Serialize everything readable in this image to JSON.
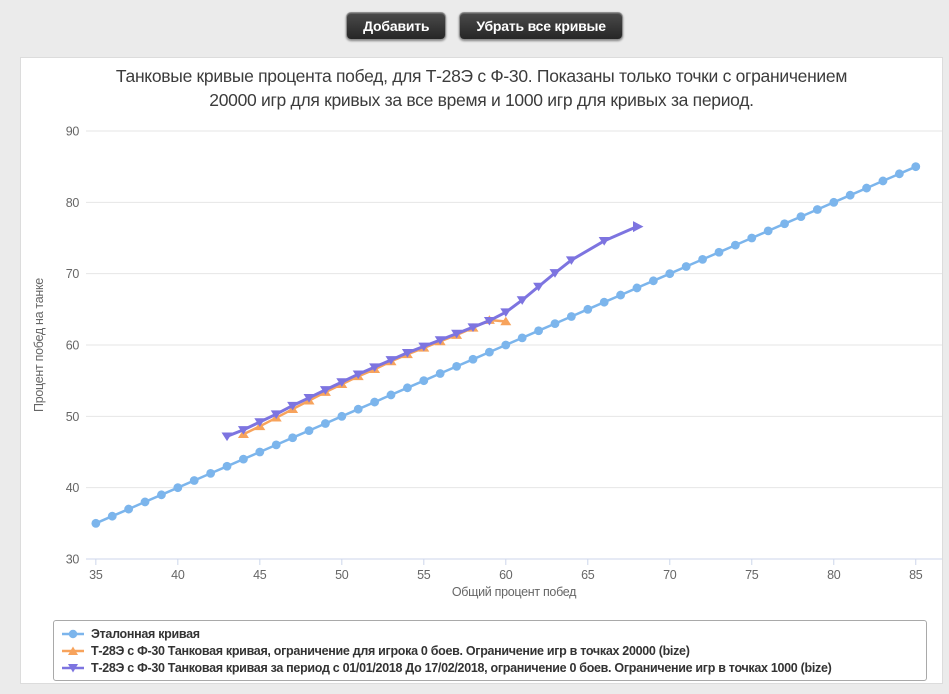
{
  "toolbar": {
    "add_label": "Добавить",
    "clear_label": "Убрать все кривые"
  },
  "colors": {
    "page_bg": "#ebebeb",
    "card_bg": "#ffffff",
    "grid_line": "#e6e6e6",
    "axis_line": "#ccd6eb",
    "tick_text": "#666666",
    "title_text": "#3c3c3c",
    "legend_text": "#333333"
  },
  "chart_data": {
    "type": "line",
    "title": "Танковые кривые процента побед, для Т-28Э с Ф-30. Показаны только точки с ограничением 20000 игр для кривых за все время и 1000 игр для кривых за период.",
    "title_lines": [
      "Танковые кривые процента побед, для Т-28Э с Ф-30. Показаны только точки с ограничением",
      "20000 игр для кривых за все время и 1000 игр для кривых за период."
    ],
    "xlabel": "Общий процент побед",
    "ylabel": "Процент побед на танке",
    "xlim": [
      34.4,
      86.6
    ],
    "ylim": [
      30,
      90
    ],
    "xticks": [
      35,
      40,
      45,
      50,
      55,
      60,
      65,
      70,
      75,
      80,
      85
    ],
    "yticks": [
      30,
      40,
      50,
      60,
      70,
      80,
      90
    ],
    "grid": "horizontal",
    "legend_position": "bottom",
    "series": [
      {
        "name": "Эталонная кривая",
        "color": "#7cb5ec",
        "marker": "circle",
        "x": [
          35,
          36,
          37,
          38,
          39,
          40,
          41,
          42,
          43,
          44,
          45,
          46,
          47,
          48,
          49,
          50,
          51,
          52,
          53,
          54,
          55,
          56,
          57,
          58,
          59,
          60,
          61,
          62,
          63,
          64,
          65,
          66,
          67,
          68,
          69,
          70,
          71,
          72,
          73,
          74,
          75,
          76,
          77,
          78,
          79,
          80,
          81,
          82,
          83,
          84,
          85
        ],
        "y": [
          35,
          36,
          37,
          38,
          39,
          40,
          41,
          42,
          43,
          44,
          45,
          46,
          47,
          48,
          49,
          50,
          51,
          52,
          53,
          54,
          55,
          56,
          57,
          58,
          59,
          60,
          61,
          62,
          63,
          64,
          65,
          66,
          67,
          68,
          69,
          70,
          71,
          72,
          73,
          74,
          75,
          76,
          77,
          78,
          79,
          80,
          81,
          82,
          83,
          84,
          85
        ]
      },
      {
        "name": "Т-28Э с Ф-30 Танковая кривая, ограничение для игрока 0 боев. Ограничение игр в точках 20000 (bize)",
        "color": "#f7a35c",
        "marker": "triangle-up",
        "x": [
          44,
          45,
          46,
          47,
          48,
          49,
          50,
          51,
          52,
          53,
          54,
          55,
          56,
          57,
          58,
          59,
          60
        ],
        "y": [
          47.5,
          48.6,
          49.8,
          51.0,
          52.2,
          53.4,
          54.5,
          55.6,
          56.6,
          57.7,
          58.7,
          59.6,
          60.5,
          61.4,
          62.4,
          63.5,
          63.3
        ]
      },
      {
        "name": "Т-28Э с Ф-30 Танковая кривая за период с 01/01/2018 До 17/02/2018, ограничение 0 боев. Ограничение игр в точках 1000 (bize)",
        "color": "#7d74e0",
        "marker": "triangle-down",
        "end_marker": "arrow-right",
        "x": [
          43,
          44,
          45,
          46,
          47,
          48,
          49,
          50,
          51,
          52,
          53,
          54,
          55,
          56,
          57,
          58,
          59,
          60,
          61,
          62,
          63,
          64,
          66,
          68
        ],
        "y": [
          47.2,
          48.1,
          49.2,
          50.3,
          51.5,
          52.6,
          53.7,
          54.8,
          55.9,
          56.9,
          57.9,
          58.9,
          59.8,
          60.7,
          61.6,
          62.5,
          63.4,
          64.6,
          66.3,
          68.2,
          70.1,
          71.9,
          74.6,
          76.6
        ]
      }
    ]
  }
}
